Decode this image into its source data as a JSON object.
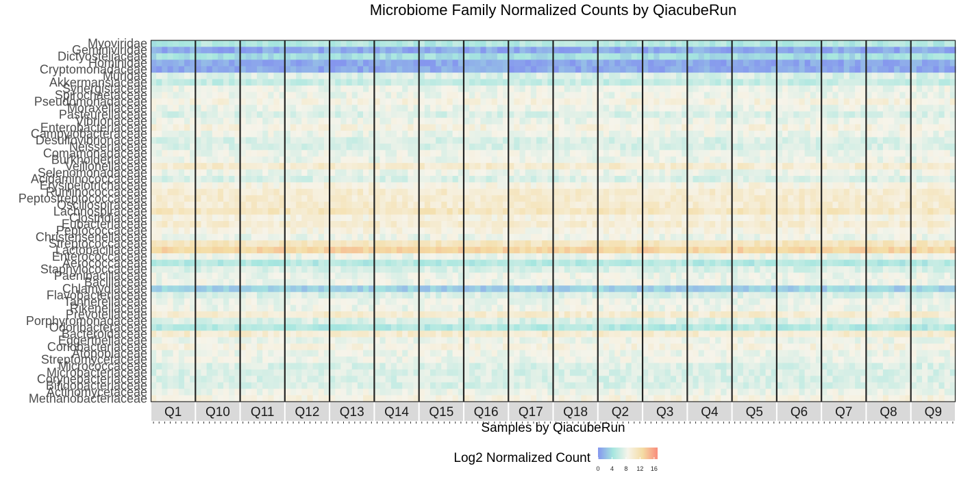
{
  "chart_data": {
    "type": "heatmap",
    "title": "Microbiome Family Normalized Counts by QiacubeRun",
    "xlabel": "Samples by QiacubeRun",
    "ylabel": "",
    "legend": {
      "title": "Log2 Normalized Count",
      "ticks": [
        "0",
        "4",
        "8",
        "12",
        "16"
      ],
      "range": [
        0,
        17
      ],
      "colors": [
        "#8596ee",
        "#a6e6df",
        "#f6f4ea",
        "#f4dca4",
        "#f98c7c"
      ],
      "placement": "bottom"
    },
    "facets": [
      "Q1",
      "Q10",
      "Q11",
      "Q12",
      "Q13",
      "Q14",
      "Q15",
      "Q16",
      "Q17",
      "Q18",
      "Q2",
      "Q3",
      "Q4",
      "Q5",
      "Q6",
      "Q7",
      "Q8",
      "Q9"
    ],
    "families": [
      "Myoviridae",
      "Geminiviridae",
      "Dictyosteliaceae",
      "Hominidae",
      "Cryptomonadaceae",
      "Muridae",
      "Akkermansiaceae",
      "Synergistaceae",
      "Spirochaetaceae",
      "Pseudomonadaceae",
      "Moraxellaceae",
      "Pasteurellaceae",
      "Vibrionaceae",
      "Enterobacteriaceae",
      "Campylobacteraceae",
      "Desulfovibrionaceae",
      "Neisseriaceae",
      "Comamonadaceae",
      "Burkholderiaceae",
      "Veillonellaceae",
      "Selenomonadaceae",
      "Acidaminococcaceae",
      "Erysipelotrichaceae",
      "Ruminococcaceae",
      "Peptostreptococcaceae",
      "Oscillospiraceae",
      "Lachnospiraceae",
      "Clostridiaceae",
      "Eubacteriaceae",
      "Peptococcaceae",
      "Christensenellaceae",
      "Streptococcaceae",
      "Lactobacillaceae",
      "Enterococcaceae",
      "Aerococcaceae",
      "Staphylococcaceae",
      "Paenibacillaceae",
      "Bacillaceae",
      "Chlamydiaceae",
      "Flavobacteriaceae",
      "Tannerellaceae",
      "Rikenellaceae",
      "Prevotellaceae",
      "Porphyromonadaceae",
      "Odoribacteraceae",
      "Bacteroidaceae",
      "Eggerthellaceae",
      "Coriobacteriaceae",
      "Atopobiaceae",
      "Streptomycetaceae",
      "Micrococcaceae",
      "Microbacteriaceae",
      "Corynebacteriaceae",
      "Bifidobacteriaceae",
      "Actinomycetaceae",
      "Methanobacteriaceae"
    ],
    "row_typical_log2": [
      5,
      1,
      4,
      1,
      1,
      7,
      6,
      8,
      8,
      9,
      8,
      7,
      8,
      9,
      8,
      7,
      7,
      8,
      8,
      10,
      8,
      7,
      9,
      10,
      10,
      10,
      11,
      9,
      10,
      9,
      8,
      11,
      13,
      8,
      5,
      7,
      8,
      8,
      3,
      7,
      8,
      8,
      10,
      7,
      5,
      10,
      8,
      9,
      8,
      8,
      7,
      7,
      7,
      7,
      8,
      9
    ],
    "grid": false
  }
}
